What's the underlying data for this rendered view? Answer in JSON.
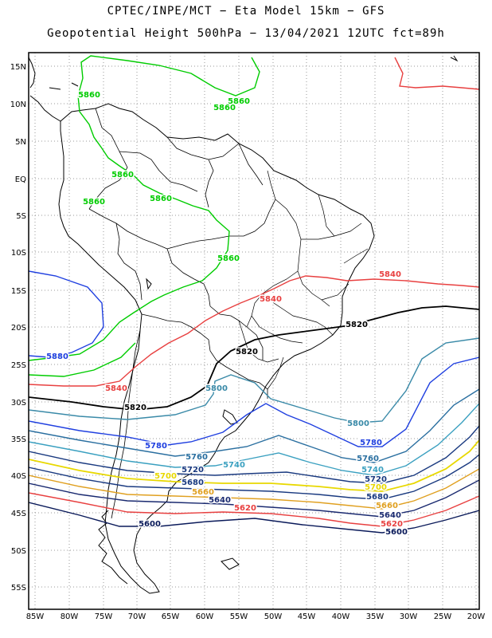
{
  "header": {
    "line1": "CPTEC/INPE/MCT −  Eta Model 15km − GFS",
    "line2": "Geopotential Height 500hPa − 13/04/2021 12UTC fct=89h"
  },
  "axes": {
    "lat_labels": [
      "15N",
      "10N",
      "5N",
      "EQ",
      "5S",
      "10S",
      "15S",
      "20S",
      "25S",
      "30S",
      "35S",
      "40S",
      "45S",
      "50S",
      "55S"
    ],
    "lon_labels": [
      "85W",
      "80W",
      "75W",
      "70W",
      "65W",
      "60W",
      "55W",
      "50W",
      "45W",
      "40W",
      "35W",
      "30W",
      "25W",
      "20W"
    ]
  },
  "contour_labels": [
    {
      "text": "5860",
      "color": "#00cc00"
    },
    {
      "text": "5860",
      "color": "#00cc00"
    },
    {
      "text": "5860",
      "color": "#00cc00"
    },
    {
      "text": "5860",
      "color": "#00cc00"
    },
    {
      "text": "5860",
      "color": "#00cc00"
    },
    {
      "text": "5860",
      "color": "#00cc00"
    },
    {
      "text": "5860",
      "color": "#00cc00"
    },
    {
      "text": "5880",
      "color": "#2040e0"
    },
    {
      "text": "5840",
      "color": "#e84040"
    },
    {
      "text": "5840",
      "color": "#e84040"
    },
    {
      "text": "5840",
      "color": "#e84040"
    },
    {
      "text": "5820",
      "color": "#000000"
    },
    {
      "text": "5820",
      "color": "#000000"
    },
    {
      "text": "5820",
      "color": "#000000"
    },
    {
      "text": "5800",
      "color": "#3a8aa8"
    },
    {
      "text": "5800",
      "color": "#3a8aa8"
    },
    {
      "text": "5780",
      "color": "#2040e0"
    },
    {
      "text": "5780",
      "color": "#2040e0"
    },
    {
      "text": "5760",
      "color": "#2a6fa0"
    },
    {
      "text": "5760",
      "color": "#2a6fa0"
    },
    {
      "text": "5740",
      "color": "#3aa0c0"
    },
    {
      "text": "5740",
      "color": "#3aa0c0"
    },
    {
      "text": "5720",
      "color": "#1a3a80"
    },
    {
      "text": "5720",
      "color": "#1a3a80"
    },
    {
      "text": "5700",
      "color": "#e8d800"
    },
    {
      "text": "5700",
      "color": "#e8d800"
    },
    {
      "text": "5680",
      "color": "#1a3a80"
    },
    {
      "text": "5680",
      "color": "#1a3a80"
    },
    {
      "text": "5660",
      "color": "#e0a020"
    },
    {
      "text": "5660",
      "color": "#e0a020"
    },
    {
      "text": "5640",
      "color": "#1a2a70"
    },
    {
      "text": "5640",
      "color": "#1a2a70"
    },
    {
      "text": "5620",
      "color": "#e84040"
    },
    {
      "text": "5620",
      "color": "#e84040"
    },
    {
      "text": "5600",
      "color": "#0a1a5a"
    },
    {
      "text": "5600",
      "color": "#0a1a5a"
    }
  ]
}
